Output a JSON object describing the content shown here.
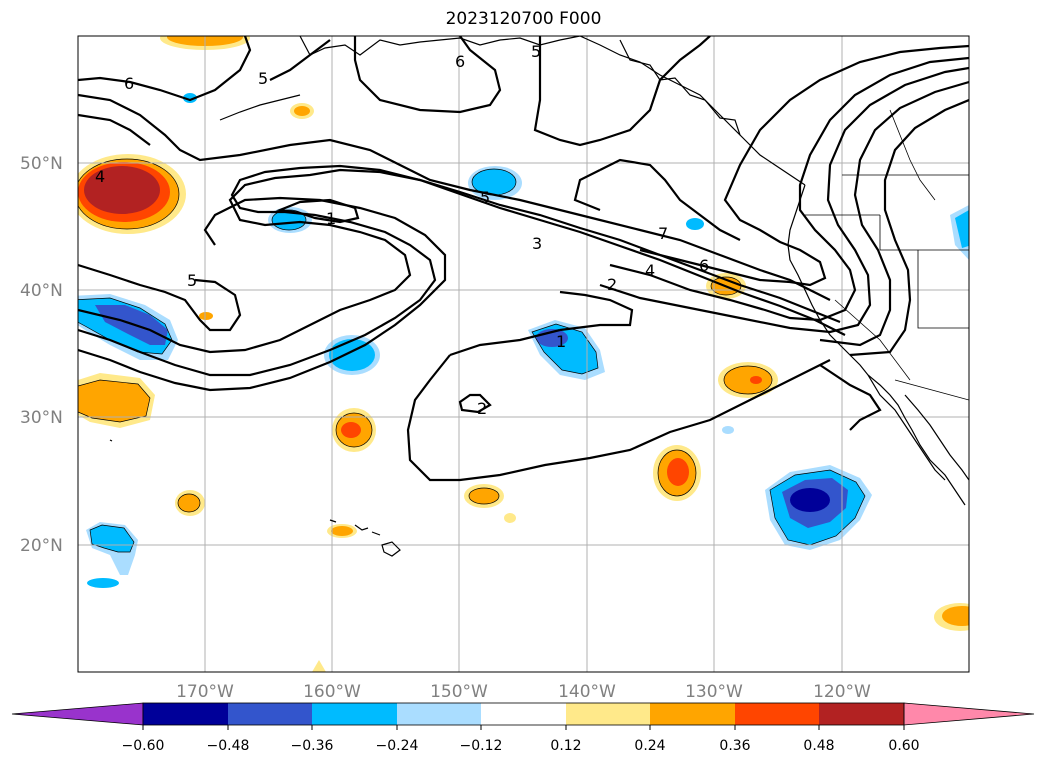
{
  "title": "2023120700 F000",
  "map": {
    "projection": "PlateCarree",
    "extent_lon": [
      -180,
      -110
    ],
    "extent_lat": [
      10,
      60
    ],
    "lat_grid": [
      20,
      30,
      40,
      50
    ],
    "lon_grid": [
      -170,
      -160,
      -150,
      -140,
      -130,
      -120
    ],
    "lat_labels": [
      "20°N",
      "30°N",
      "40°N",
      "50°N"
    ],
    "lon_labels": [
      "170°W",
      "160°W",
      "150°W",
      "140°W",
      "130°W",
      "120°W"
    ],
    "contour_labels": [
      "6",
      "5",
      "6",
      "5",
      "4",
      "1",
      "5",
      "5",
      "3",
      "2",
      "4",
      "7",
      "6",
      "1",
      "2"
    ]
  },
  "colorbar": {
    "tick_labels": [
      "−0.60",
      "−0.48",
      "−0.36",
      "−0.24",
      "−0.12",
      "0.12",
      "0.24",
      "0.36",
      "0.48",
      "0.60"
    ],
    "colors": [
      "#9933cc",
      "#000099",
      "#3355cc",
      "#00bbff",
      "#aaddff",
      "#ffffff",
      "#ffe98a",
      "#ffa500",
      "#ff4500",
      "#b22222",
      "#ff88aa"
    ],
    "extend": "both"
  }
}
